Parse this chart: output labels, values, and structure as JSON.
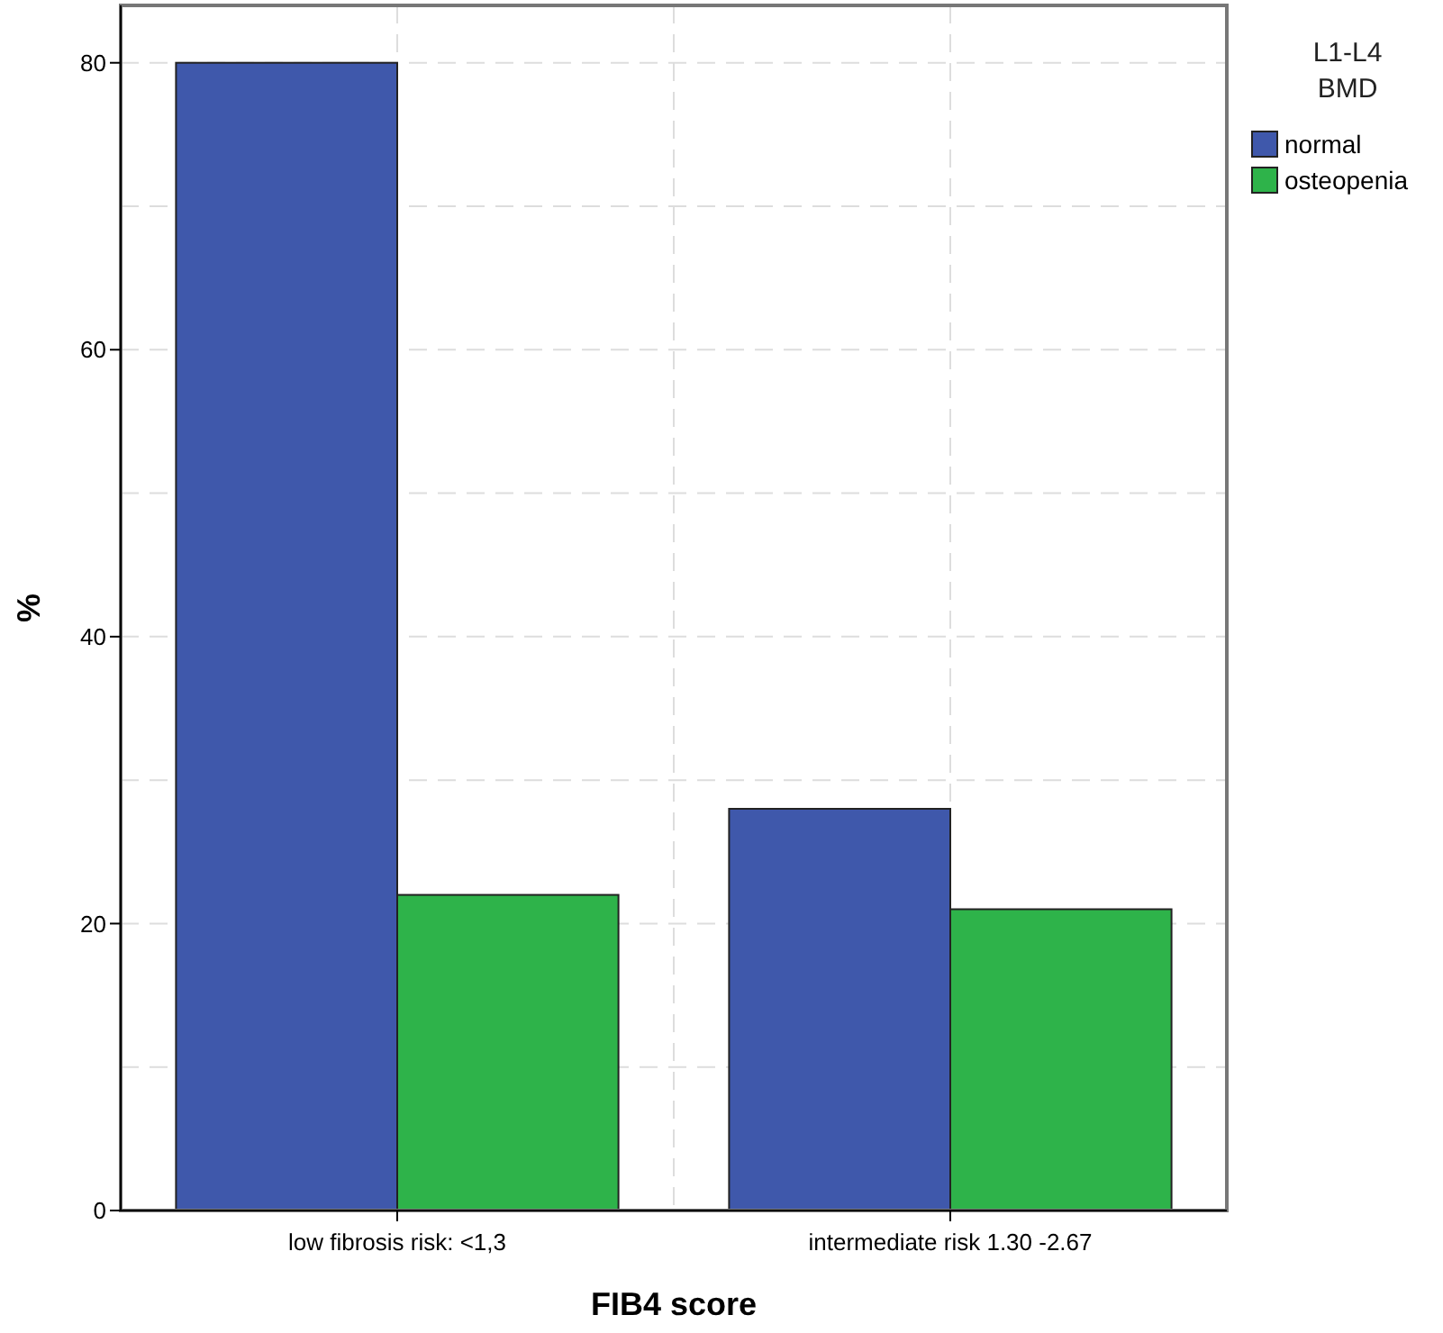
{
  "chart_data": {
    "type": "bar",
    "xlabel": "FIB4 score",
    "ylabel": "%",
    "legend_title": "L1-L4 BMD",
    "categories": [
      "low fibrosis risk: <1,3",
      "intermediate risk 1.30 -2.67"
    ],
    "series": [
      {
        "name": "normal",
        "color": "#3f58ab",
        "values": [
          80,
          28
        ]
      },
      {
        "name": "osteopenia",
        "color": "#2eb34a",
        "values": [
          22,
          21
        ]
      }
    ],
    "ylim": [
      0,
      84
    ],
    "yticks": [
      0,
      {
        "value": 10,
        "label": null
      },
      20,
      {
        "value": 30,
        "label": null
      },
      40,
      {
        "value": 50,
        "label": null
      },
      60,
      {
        "value": 70,
        "label": null
      },
      80
    ],
    "grid": true,
    "legend": "top right"
  }
}
